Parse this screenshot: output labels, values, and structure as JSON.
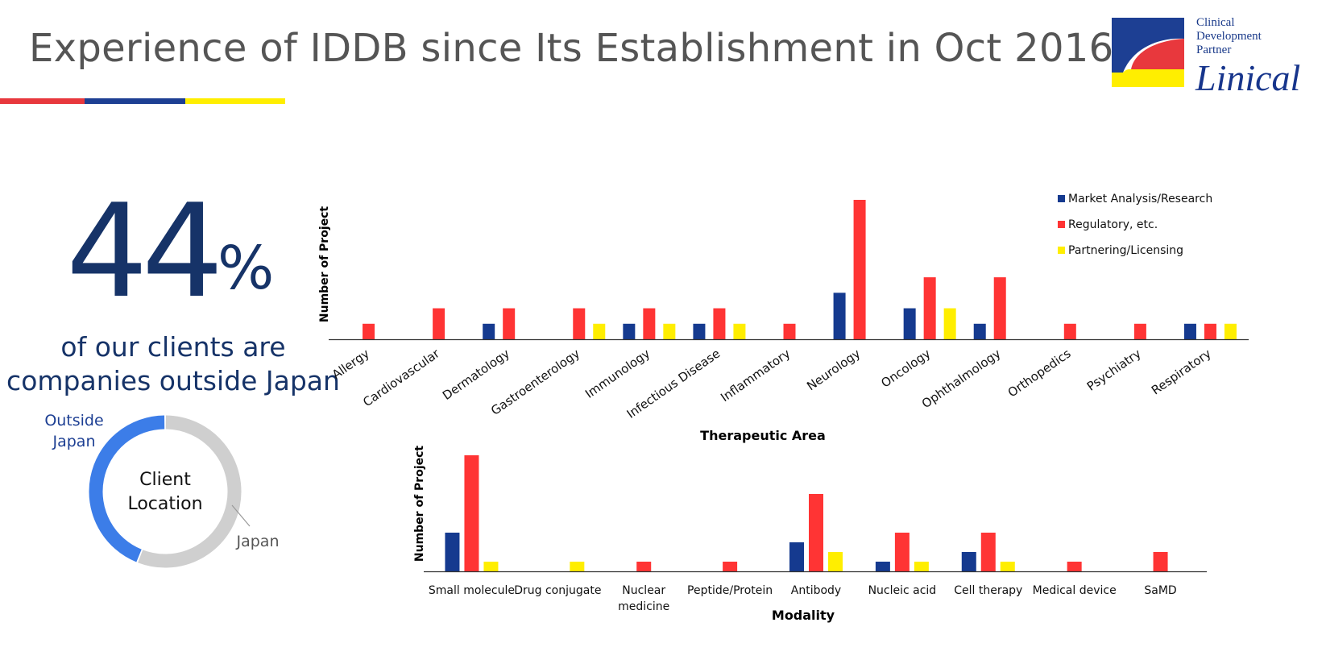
{
  "title": "Experience of IDDB since Its Establishment in Oct 2016",
  "colors": {
    "market": "#153a8f",
    "regulatory": "#ff3434",
    "partnering": "#ffee00",
    "accent_red": "#e8383d",
    "accent_blue": "#1d3f93",
    "accent_yellow": "#ffee00"
  },
  "logo": {
    "line1": "Clinical",
    "line2": "Development",
    "line3": "Partner",
    "brand": "Linical"
  },
  "stat": {
    "value": "44",
    "unit": "%",
    "line1": "of our clients are",
    "line2": "companies outside Japan"
  },
  "chart_data": [
    {
      "type": "pie",
      "style": "donut",
      "title": "Client Location",
      "title_lines": [
        "Client",
        "Location"
      ],
      "slices": [
        {
          "label": "Outside Japan",
          "label_lines": [
            "Outside",
            "Japan"
          ],
          "value": 44,
          "color": "#3c7de8"
        },
        {
          "label": "Japan",
          "label_lines": [
            "Japan"
          ],
          "value": 56,
          "color": "#cfcfcf"
        }
      ]
    },
    {
      "type": "bar",
      "xlabel": "Therapeutic Area",
      "ylabel": "Number of Project",
      "ylim": [
        0,
        9
      ],
      "legend_position": "top-right",
      "categories": [
        "Allergy",
        "Cardiovascular",
        "Dermatology",
        "Gastroenterology",
        "Immunology",
        "Infectious Disease",
        "Inflammatory",
        "Neurology",
        "Oncology",
        "Ophthalmology",
        "Orthopedics",
        "Psychiatry",
        "Respiratory"
      ],
      "series": [
        {
          "name": "Market Analysis/Research",
          "color": "#153a8f",
          "values": [
            0,
            0,
            1,
            0,
            1,
            1,
            0,
            3,
            2,
            1,
            0,
            0,
            1
          ]
        },
        {
          "name": "Regulatory, etc.",
          "color": "#ff3434",
          "values": [
            1,
            2,
            2,
            2,
            2,
            2,
            1,
            9,
            4,
            4,
            1,
            1,
            1
          ]
        },
        {
          "name": "Partnering/Licensing",
          "color": "#ffee00",
          "values": [
            0,
            0,
            0,
            1,
            1,
            1,
            0,
            0,
            2,
            0,
            0,
            0,
            1
          ]
        }
      ]
    },
    {
      "type": "bar",
      "xlabel": "Modality",
      "ylabel": "Number of Project",
      "ylim": [
        0,
        12
      ],
      "categories": [
        "Small molecule",
        "Drug conjugate",
        "Nuclear medicine",
        "Peptide/Protein",
        "Antibody",
        "Nucleic acid",
        "Cell therapy",
        "Medical device",
        "SaMD"
      ],
      "category_lines": [
        [
          "Small molecule"
        ],
        [
          "Drug conjugate"
        ],
        [
          "Nuclear",
          "medicine"
        ],
        [
          "Peptide/Protein"
        ],
        [
          "Antibody"
        ],
        [
          "Nucleic acid"
        ],
        [
          "Cell therapy"
        ],
        [
          "Medical device"
        ],
        [
          "SaMD"
        ]
      ],
      "series": [
        {
          "name": "Market Analysis/Research",
          "color": "#153a8f",
          "values": [
            4,
            0,
            0,
            0,
            3,
            1,
            2,
            0,
            0
          ]
        },
        {
          "name": "Regulatory, etc.",
          "color": "#ff3434",
          "values": [
            12,
            0,
            1,
            1,
            8,
            4,
            4,
            1,
            2
          ]
        },
        {
          "name": "Partnering/Licensing",
          "color": "#ffee00",
          "values": [
            1,
            1,
            0,
            0,
            2,
            1,
            1,
            0,
            0
          ]
        }
      ]
    }
  ]
}
